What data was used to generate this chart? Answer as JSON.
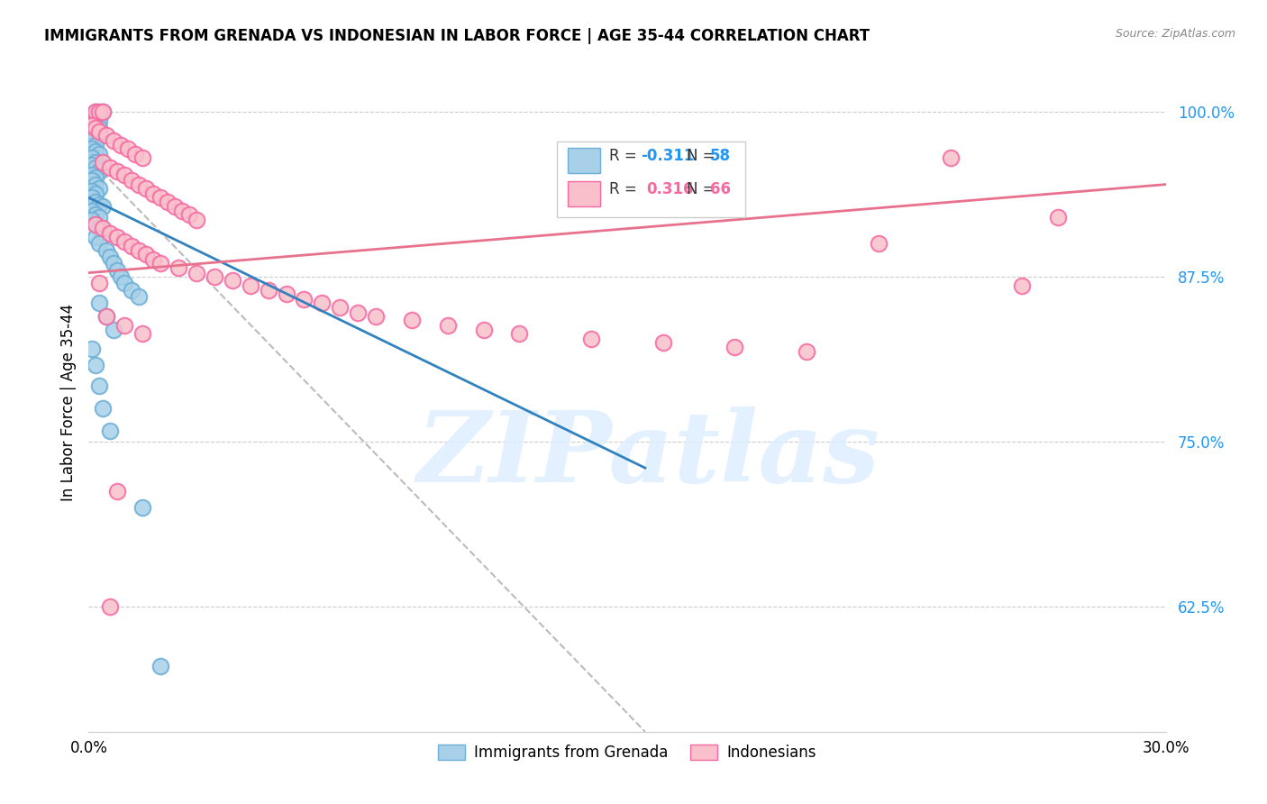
{
  "title": "IMMIGRANTS FROM GRENADA VS INDONESIAN IN LABOR FORCE | AGE 35-44 CORRELATION CHART",
  "source": "Source: ZipAtlas.com",
  "ylabel": "In Labor Force | Age 35-44",
  "xmin": 0.0,
  "xmax": 0.3,
  "ymin": 0.53,
  "ymax": 1.03,
  "yticks": [
    0.625,
    0.75,
    0.875,
    1.0
  ],
  "ytick_labels": [
    "62.5%",
    "75.0%",
    "87.5%",
    "100.0%"
  ],
  "xticks": [
    0.0,
    0.05,
    0.1,
    0.15,
    0.2,
    0.25,
    0.3
  ],
  "xtick_labels": [
    "0.0%",
    "",
    "",
    "",
    "",
    "",
    "30.0%"
  ],
  "legend_R1": "R = ",
  "legend_R1_val": "-0.311",
  "legend_N1_label": "N = ",
  "legend_N1_val": "58",
  "legend_R2": "R =  ",
  "legend_R2_val": "0.316",
  "legend_N2_label": "N = ",
  "legend_N2_val": "66",
  "blue_fill": "#a8d0e8",
  "blue_edge": "#6baed6",
  "pink_fill": "#f9c0cb",
  "pink_edge": "#f768a1",
  "blue_line_color": "#3182bd",
  "pink_line_color": "#e8718d",
  "gray_dash_color": "#bbbbbb",
  "watermark": "ZIPatlas",
  "watermark_color": "#ddeeff",
  "background_color": "#ffffff",
  "blue_scatter_x": [
    0.002,
    0.004,
    0.001,
    0.002,
    0.003,
    0.001,
    0.003,
    0.002,
    0.001,
    0.002,
    0.001,
    0.002,
    0.001,
    0.002,
    0.003,
    0.001,
    0.002,
    0.001,
    0.002,
    0.003,
    0.001,
    0.002,
    0.001,
    0.002,
    0.003,
    0.001,
    0.002,
    0.001,
    0.002,
    0.003,
    0.004,
    0.001,
    0.002,
    0.003,
    0.001,
    0.002,
    0.003,
    0.004,
    0.002,
    0.003,
    0.005,
    0.006,
    0.007,
    0.008,
    0.009,
    0.01,
    0.012,
    0.014,
    0.003,
    0.005,
    0.007,
    0.001,
    0.002,
    0.003,
    0.004,
    0.006,
    0.015,
    0.02
  ],
  "blue_scatter_y": [
    1.0,
    1.0,
    0.997,
    0.995,
    0.993,
    0.99,
    0.988,
    0.985,
    0.982,
    0.98,
    0.978,
    0.975,
    0.972,
    0.97,
    0.968,
    0.965,
    0.962,
    0.96,
    0.958,
    0.955,
    0.952,
    0.95,
    0.948,
    0.945,
    0.942,
    0.94,
    0.938,
    0.935,
    0.932,
    0.93,
    0.928,
    0.925,
    0.922,
    0.92,
    0.918,
    0.915,
    0.912,
    0.91,
    0.905,
    0.9,
    0.895,
    0.89,
    0.885,
    0.88,
    0.875,
    0.87,
    0.865,
    0.86,
    0.855,
    0.845,
    0.835,
    0.82,
    0.808,
    0.792,
    0.775,
    0.758,
    0.7,
    0.58
  ],
  "pink_scatter_x": [
    0.002,
    0.003,
    0.004,
    0.001,
    0.002,
    0.003,
    0.005,
    0.007,
    0.009,
    0.011,
    0.013,
    0.015,
    0.004,
    0.006,
    0.008,
    0.01,
    0.012,
    0.014,
    0.016,
    0.018,
    0.02,
    0.022,
    0.024,
    0.026,
    0.028,
    0.03,
    0.002,
    0.004,
    0.006,
    0.008,
    0.01,
    0.012,
    0.014,
    0.016,
    0.018,
    0.02,
    0.025,
    0.03,
    0.035,
    0.04,
    0.045,
    0.05,
    0.055,
    0.06,
    0.065,
    0.07,
    0.075,
    0.08,
    0.09,
    0.1,
    0.11,
    0.12,
    0.14,
    0.16,
    0.18,
    0.2,
    0.22,
    0.24,
    0.26,
    0.27,
    0.005,
    0.01,
    0.015,
    0.003,
    0.006,
    0.008
  ],
  "pink_scatter_y": [
    1.0,
    1.0,
    1.0,
    0.99,
    0.988,
    0.985,
    0.982,
    0.978,
    0.975,
    0.972,
    0.968,
    0.965,
    0.962,
    0.958,
    0.955,
    0.952,
    0.948,
    0.945,
    0.942,
    0.938,
    0.935,
    0.932,
    0.928,
    0.925,
    0.922,
    0.918,
    0.915,
    0.912,
    0.908,
    0.905,
    0.902,
    0.898,
    0.895,
    0.892,
    0.888,
    0.885,
    0.882,
    0.878,
    0.875,
    0.872,
    0.868,
    0.865,
    0.862,
    0.858,
    0.855,
    0.852,
    0.848,
    0.845,
    0.842,
    0.838,
    0.835,
    0.832,
    0.828,
    0.825,
    0.822,
    0.818,
    0.9,
    0.965,
    0.868,
    0.92,
    0.845,
    0.838,
    0.832,
    0.87,
    0.625,
    0.712
  ],
  "blue_line_x": [
    0.0,
    0.155
  ],
  "blue_line_y": [
    0.935,
    0.73
  ],
  "pink_line_x": [
    0.0,
    0.3
  ],
  "pink_line_y": [
    0.878,
    0.945
  ],
  "gray_line_x": [
    0.0,
    0.155
  ],
  "gray_line_y": [
    0.965,
    0.53
  ]
}
